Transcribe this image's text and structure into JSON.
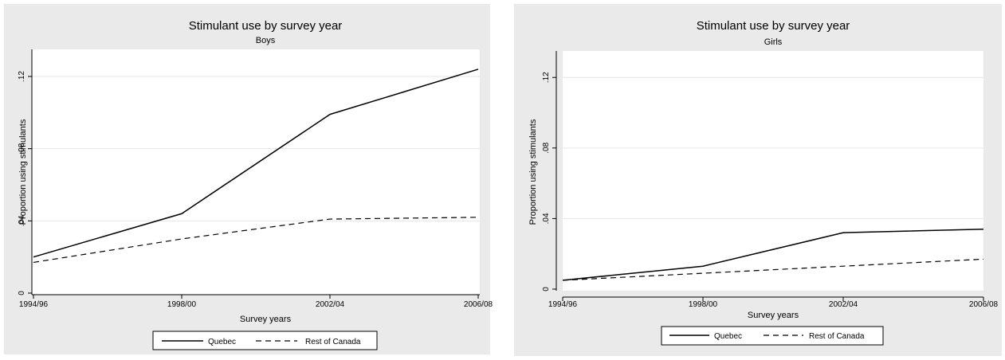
{
  "chart_data": [
    {
      "type": "line",
      "title": "Stimulant use by survey year",
      "subtitle": "Boys",
      "xlabel": "Survey years",
      "ylabel": "Proportion using stimulants",
      "categories": [
        "1994/96",
        "1998/00",
        "2002/04",
        "2006/08"
      ],
      "ylim": [
        0,
        0.135
      ],
      "yticks": [
        0,
        0.04,
        0.08,
        0.12
      ],
      "ytick_labels": [
        "0",
        ".04",
        ".08",
        ".12"
      ],
      "grid": true,
      "legend_position": "bottom",
      "series": [
        {
          "name": "Quebec",
          "values": [
            0.02,
            0.044,
            0.099,
            0.124
          ],
          "style": "solid"
        },
        {
          "name": "Rest of Canada",
          "values": [
            0.017,
            0.03,
            0.041,
            0.042
          ],
          "style": "dashed"
        }
      ]
    },
    {
      "type": "line",
      "title": "Stimulant use by survey year",
      "subtitle": "Girls",
      "xlabel": "Survey years",
      "ylabel": "Proportion using stimulants",
      "categories": [
        "1994/96",
        "1998/00",
        "2002/04",
        "2006/08"
      ],
      "ylim": [
        0,
        0.135
      ],
      "yticks": [
        0,
        0.04,
        0.08,
        0.12
      ],
      "ytick_labels": [
        "0",
        ".04",
        ".08",
        ".12"
      ],
      "grid": true,
      "legend_position": "bottom",
      "series": [
        {
          "name": "Quebec",
          "values": [
            0.005,
            0.013,
            0.032,
            0.034
          ],
          "style": "solid"
        },
        {
          "name": "Rest of Canada",
          "values": [
            0.005,
            0.009,
            0.013,
            0.017
          ],
          "style": "dashed"
        }
      ]
    }
  ]
}
